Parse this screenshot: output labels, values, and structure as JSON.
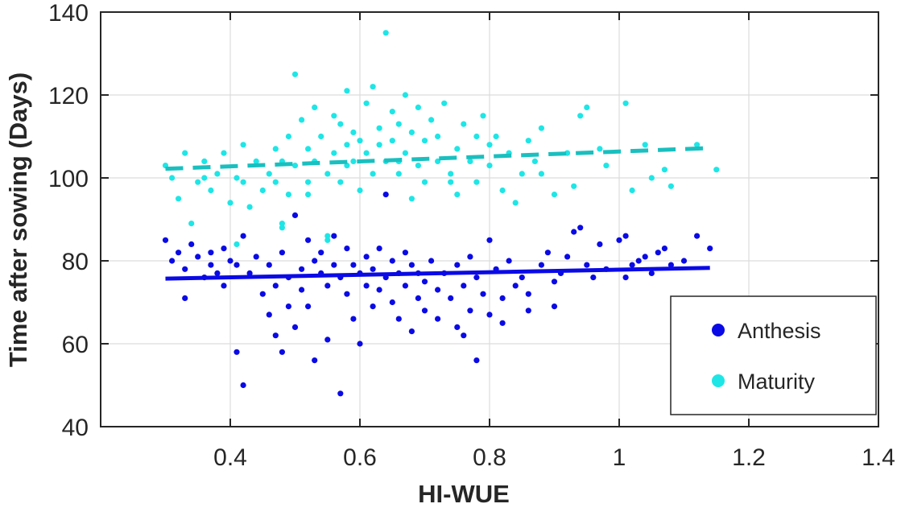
{
  "chart_data": {
    "type": "scatter",
    "title": "",
    "xlabel": "HI-WUE",
    "ylabel": "Time after sowing (Days)",
    "xlim": [
      0.2,
      1.4
    ],
    "ylim": [
      40,
      140
    ],
    "xticks": [
      0.4,
      0.6,
      0.8,
      1.0,
      1.2,
      1.4
    ],
    "xtick_labels": [
      "0.4",
      "0.6",
      "0.8",
      "1",
      "1.2",
      "1.4"
    ],
    "yticks": [
      40,
      60,
      80,
      100,
      120,
      140
    ],
    "ytick_labels": [
      "40",
      "60",
      "80",
      "100",
      "120",
      "140"
    ],
    "grid": true,
    "legend_position": "bottom-right",
    "colors": {
      "anthesis": "#0a0ae6",
      "maturity": "#1ee6e6",
      "maturity_fit": "#1abfbf",
      "axis": "#262626",
      "grid": "#dcdcdc"
    },
    "series": [
      {
        "name": "Anthesis",
        "marker": "dot",
        "points": [
          [
            0.3,
            85
          ],
          [
            0.31,
            80
          ],
          [
            0.32,
            82
          ],
          [
            0.33,
            71
          ],
          [
            0.33,
            78
          ],
          [
            0.34,
            84
          ],
          [
            0.35,
            81
          ],
          [
            0.36,
            76
          ],
          [
            0.37,
            79
          ],
          [
            0.37,
            82
          ],
          [
            0.38,
            77
          ],
          [
            0.39,
            83
          ],
          [
            0.39,
            74
          ],
          [
            0.4,
            80
          ],
          [
            0.41,
            58
          ],
          [
            0.41,
            79
          ],
          [
            0.42,
            50
          ],
          [
            0.42,
            86
          ],
          [
            0.43,
            77
          ],
          [
            0.44,
            81
          ],
          [
            0.45,
            72
          ],
          [
            0.46,
            79
          ],
          [
            0.46,
            67
          ],
          [
            0.47,
            62
          ],
          [
            0.47,
            74
          ],
          [
            0.48,
            58
          ],
          [
            0.48,
            82
          ],
          [
            0.49,
            69
          ],
          [
            0.49,
            76
          ],
          [
            0.5,
            91
          ],
          [
            0.5,
            64
          ],
          [
            0.51,
            78
          ],
          [
            0.51,
            73
          ],
          [
            0.52,
            85
          ],
          [
            0.52,
            69
          ],
          [
            0.53,
            80
          ],
          [
            0.53,
            56
          ],
          [
            0.54,
            77
          ],
          [
            0.54,
            82
          ],
          [
            0.55,
            74
          ],
          [
            0.55,
            61
          ],
          [
            0.56,
            79
          ],
          [
            0.56,
            86
          ],
          [
            0.57,
            48
          ],
          [
            0.57,
            76
          ],
          [
            0.58,
            72
          ],
          [
            0.58,
            83
          ],
          [
            0.59,
            66
          ],
          [
            0.59,
            79
          ],
          [
            0.6,
            60
          ],
          [
            0.6,
            77
          ],
          [
            0.61,
            74
          ],
          [
            0.61,
            81
          ],
          [
            0.62,
            69
          ],
          [
            0.62,
            78
          ],
          [
            0.63,
            83
          ],
          [
            0.63,
            73
          ],
          [
            0.64,
            96
          ],
          [
            0.64,
            76
          ],
          [
            0.65,
            70
          ],
          [
            0.65,
            80
          ],
          [
            0.66,
            77
          ],
          [
            0.66,
            66
          ],
          [
            0.67,
            82
          ],
          [
            0.67,
            74
          ],
          [
            0.68,
            63
          ],
          [
            0.68,
            79
          ],
          [
            0.69,
            71
          ],
          [
            0.69,
            77
          ],
          [
            0.7,
            75
          ],
          [
            0.7,
            68
          ],
          [
            0.71,
            80
          ],
          [
            0.72,
            73
          ],
          [
            0.72,
            66
          ],
          [
            0.73,
            77
          ],
          [
            0.74,
            71
          ],
          [
            0.75,
            79
          ],
          [
            0.75,
            64
          ],
          [
            0.76,
            74
          ],
          [
            0.77,
            81
          ],
          [
            0.77,
            68
          ],
          [
            0.78,
            56
          ],
          [
            0.78,
            76
          ],
          [
            0.79,
            72
          ],
          [
            0.8,
            85
          ],
          [
            0.8,
            67
          ],
          [
            0.81,
            78
          ],
          [
            0.82,
            71
          ],
          [
            0.82,
            65
          ],
          [
            0.83,
            80
          ],
          [
            0.84,
            74
          ],
          [
            0.85,
            76
          ],
          [
            0.86,
            72
          ],
          [
            0.86,
            68
          ],
          [
            0.88,
            79
          ],
          [
            0.89,
            82
          ],
          [
            0.9,
            75
          ],
          [
            0.91,
            77
          ],
          [
            0.92,
            81
          ],
          [
            0.93,
            87
          ],
          [
            0.94,
            88
          ],
          [
            0.95,
            79
          ],
          [
            0.96,
            76
          ],
          [
            0.97,
            84
          ],
          [
            0.98,
            78
          ],
          [
            1.0,
            85
          ],
          [
            1.01,
            86
          ],
          [
            1.02,
            79
          ],
          [
            1.03,
            80
          ],
          [
            1.04,
            81
          ],
          [
            1.05,
            77
          ],
          [
            1.06,
            82
          ],
          [
            1.07,
            83
          ],
          [
            1.08,
            79
          ],
          [
            1.1,
            80
          ],
          [
            1.12,
            86
          ],
          [
            1.14,
            83
          ],
          [
            1.01,
            76
          ],
          [
            0.9,
            69
          ],
          [
            0.76,
            62
          ]
        ],
        "fit_line": {
          "x": [
            0.3,
            1.14
          ],
          "y": [
            75.7,
            78.3
          ],
          "style": "solid"
        }
      },
      {
        "name": "Maturity",
        "marker": "dot",
        "points": [
          [
            0.3,
            103
          ],
          [
            0.31,
            100
          ],
          [
            0.32,
            95
          ],
          [
            0.33,
            106
          ],
          [
            0.34,
            89
          ],
          [
            0.35,
            99
          ],
          [
            0.36,
            104
          ],
          [
            0.37,
            97
          ],
          [
            0.38,
            101
          ],
          [
            0.39,
            106
          ],
          [
            0.4,
            94
          ],
          [
            0.41,
            84
          ],
          [
            0.41,
            100
          ],
          [
            0.42,
            108
          ],
          [
            0.43,
            93
          ],
          [
            0.44,
            104
          ],
          [
            0.45,
            97
          ],
          [
            0.46,
            101
          ],
          [
            0.47,
            107
          ],
          [
            0.47,
            99
          ],
          [
            0.48,
            88
          ],
          [
            0.48,
            104
          ],
          [
            0.49,
            110
          ],
          [
            0.49,
            96
          ],
          [
            0.5,
            125
          ],
          [
            0.5,
            103
          ],
          [
            0.51,
            114
          ],
          [
            0.52,
            99
          ],
          [
            0.52,
            107
          ],
          [
            0.53,
            117
          ],
          [
            0.53,
            104
          ],
          [
            0.54,
            110
          ],
          [
            0.55,
            101
          ],
          [
            0.55,
            86
          ],
          [
            0.56,
            115
          ],
          [
            0.56,
            106
          ],
          [
            0.57,
            99
          ],
          [
            0.57,
            113
          ],
          [
            0.58,
            121
          ],
          [
            0.58,
            108
          ],
          [
            0.59,
            104
          ],
          [
            0.59,
            111
          ],
          [
            0.6,
            97
          ],
          [
            0.6,
            109
          ],
          [
            0.61,
            118
          ],
          [
            0.61,
            106
          ],
          [
            0.62,
            122
          ],
          [
            0.62,
            101
          ],
          [
            0.63,
            112
          ],
          [
            0.63,
            108
          ],
          [
            0.64,
            135
          ],
          [
            0.64,
            104
          ],
          [
            0.65,
            116
          ],
          [
            0.65,
            109
          ],
          [
            0.66,
            101
          ],
          [
            0.66,
            113
          ],
          [
            0.67,
            120
          ],
          [
            0.67,
            106
          ],
          [
            0.68,
            95
          ],
          [
            0.68,
            111
          ],
          [
            0.69,
            117
          ],
          [
            0.69,
            103
          ],
          [
            0.7,
            109
          ],
          [
            0.7,
            99
          ],
          [
            0.71,
            114
          ],
          [
            0.72,
            104
          ],
          [
            0.72,
            110
          ],
          [
            0.73,
            118
          ],
          [
            0.74,
            101
          ],
          [
            0.75,
            107
          ],
          [
            0.75,
            96
          ],
          [
            0.76,
            113
          ],
          [
            0.77,
            104
          ],
          [
            0.78,
            110
          ],
          [
            0.78,
            99
          ],
          [
            0.79,
            115
          ],
          [
            0.8,
            108
          ],
          [
            0.8,
            103
          ],
          [
            0.81,
            110
          ],
          [
            0.82,
            97
          ],
          [
            0.83,
            106
          ],
          [
            0.84,
            94
          ],
          [
            0.85,
            101
          ],
          [
            0.86,
            109
          ],
          [
            0.87,
            104
          ],
          [
            0.88,
            112
          ],
          [
            0.9,
            96
          ],
          [
            0.92,
            106
          ],
          [
            0.93,
            98
          ],
          [
            0.94,
            115
          ],
          [
            0.95,
            117
          ],
          [
            0.97,
            107
          ],
          [
            0.98,
            103
          ],
          [
            1.01,
            118
          ],
          [
            1.02,
            97
          ],
          [
            1.04,
            108
          ],
          [
            1.05,
            100
          ],
          [
            1.07,
            102
          ],
          [
            1.08,
            98
          ],
          [
            1.12,
            108
          ],
          [
            1.15,
            102
          ],
          [
            0.55,
            85
          ],
          [
            0.48,
            89
          ],
          [
            0.42,
            99
          ],
          [
            0.36,
            100
          ],
          [
            0.88,
            101
          ],
          [
            0.74,
            99
          ],
          [
            0.66,
            104
          ],
          [
            0.58,
            103
          ],
          [
            0.52,
            96
          ]
        ],
        "fit_line": {
          "x": [
            0.3,
            1.14
          ],
          "y": [
            102.2,
            107.2
          ],
          "style": "dashed"
        }
      }
    ]
  }
}
